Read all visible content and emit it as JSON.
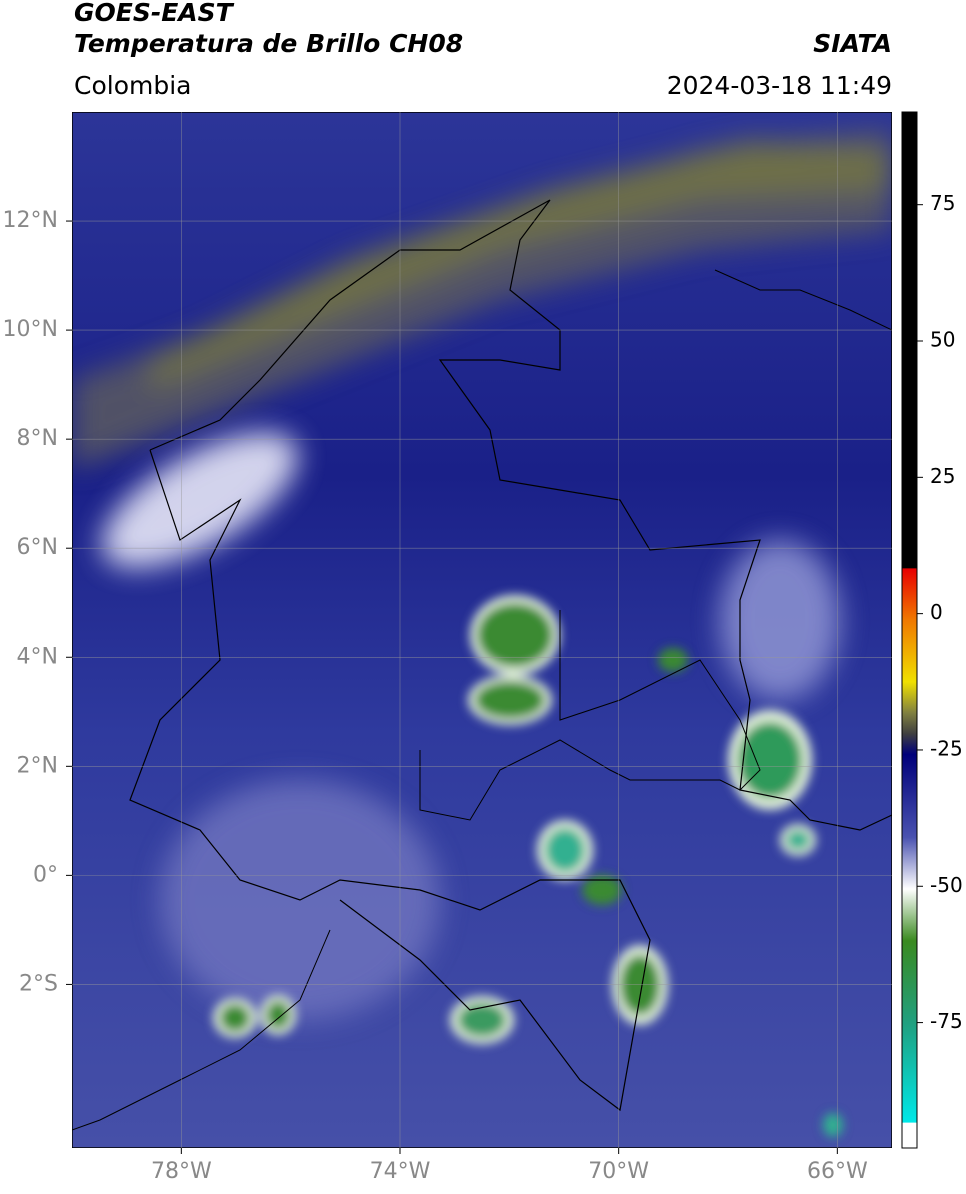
{
  "header": {
    "title": "GOES-EAST",
    "subtitle": "Temperatura de Brillo CH08",
    "source": "SIATA",
    "region": "Colombia",
    "datetime": "2024-03-18 11:49"
  },
  "map": {
    "xlim": [
      -80,
      -65
    ],
    "ylim": [
      -5,
      14
    ],
    "xticks": [
      {
        "value": -78,
        "label": "78°W"
      },
      {
        "value": -74,
        "label": "74°W"
      },
      {
        "value": -70,
        "label": "70°W"
      },
      {
        "value": -66,
        "label": "66°W"
      }
    ],
    "yticks": [
      {
        "value": 12,
        "label": "12°N"
      },
      {
        "value": 10,
        "label": "10°N"
      },
      {
        "value": 8,
        "label": "8°N"
      },
      {
        "value": 6,
        "label": "6°N"
      },
      {
        "value": 4,
        "label": "4°N"
      },
      {
        "value": 2,
        "label": "2°N"
      },
      {
        "value": 0,
        "label": "0°"
      },
      {
        "value": -2,
        "label": "2°S"
      }
    ],
    "grid": true
  },
  "colorbar": {
    "lim": [
      -98,
      92
    ],
    "ticks": [
      75,
      50,
      25,
      0,
      -25,
      -50,
      -75
    ]
  }
}
